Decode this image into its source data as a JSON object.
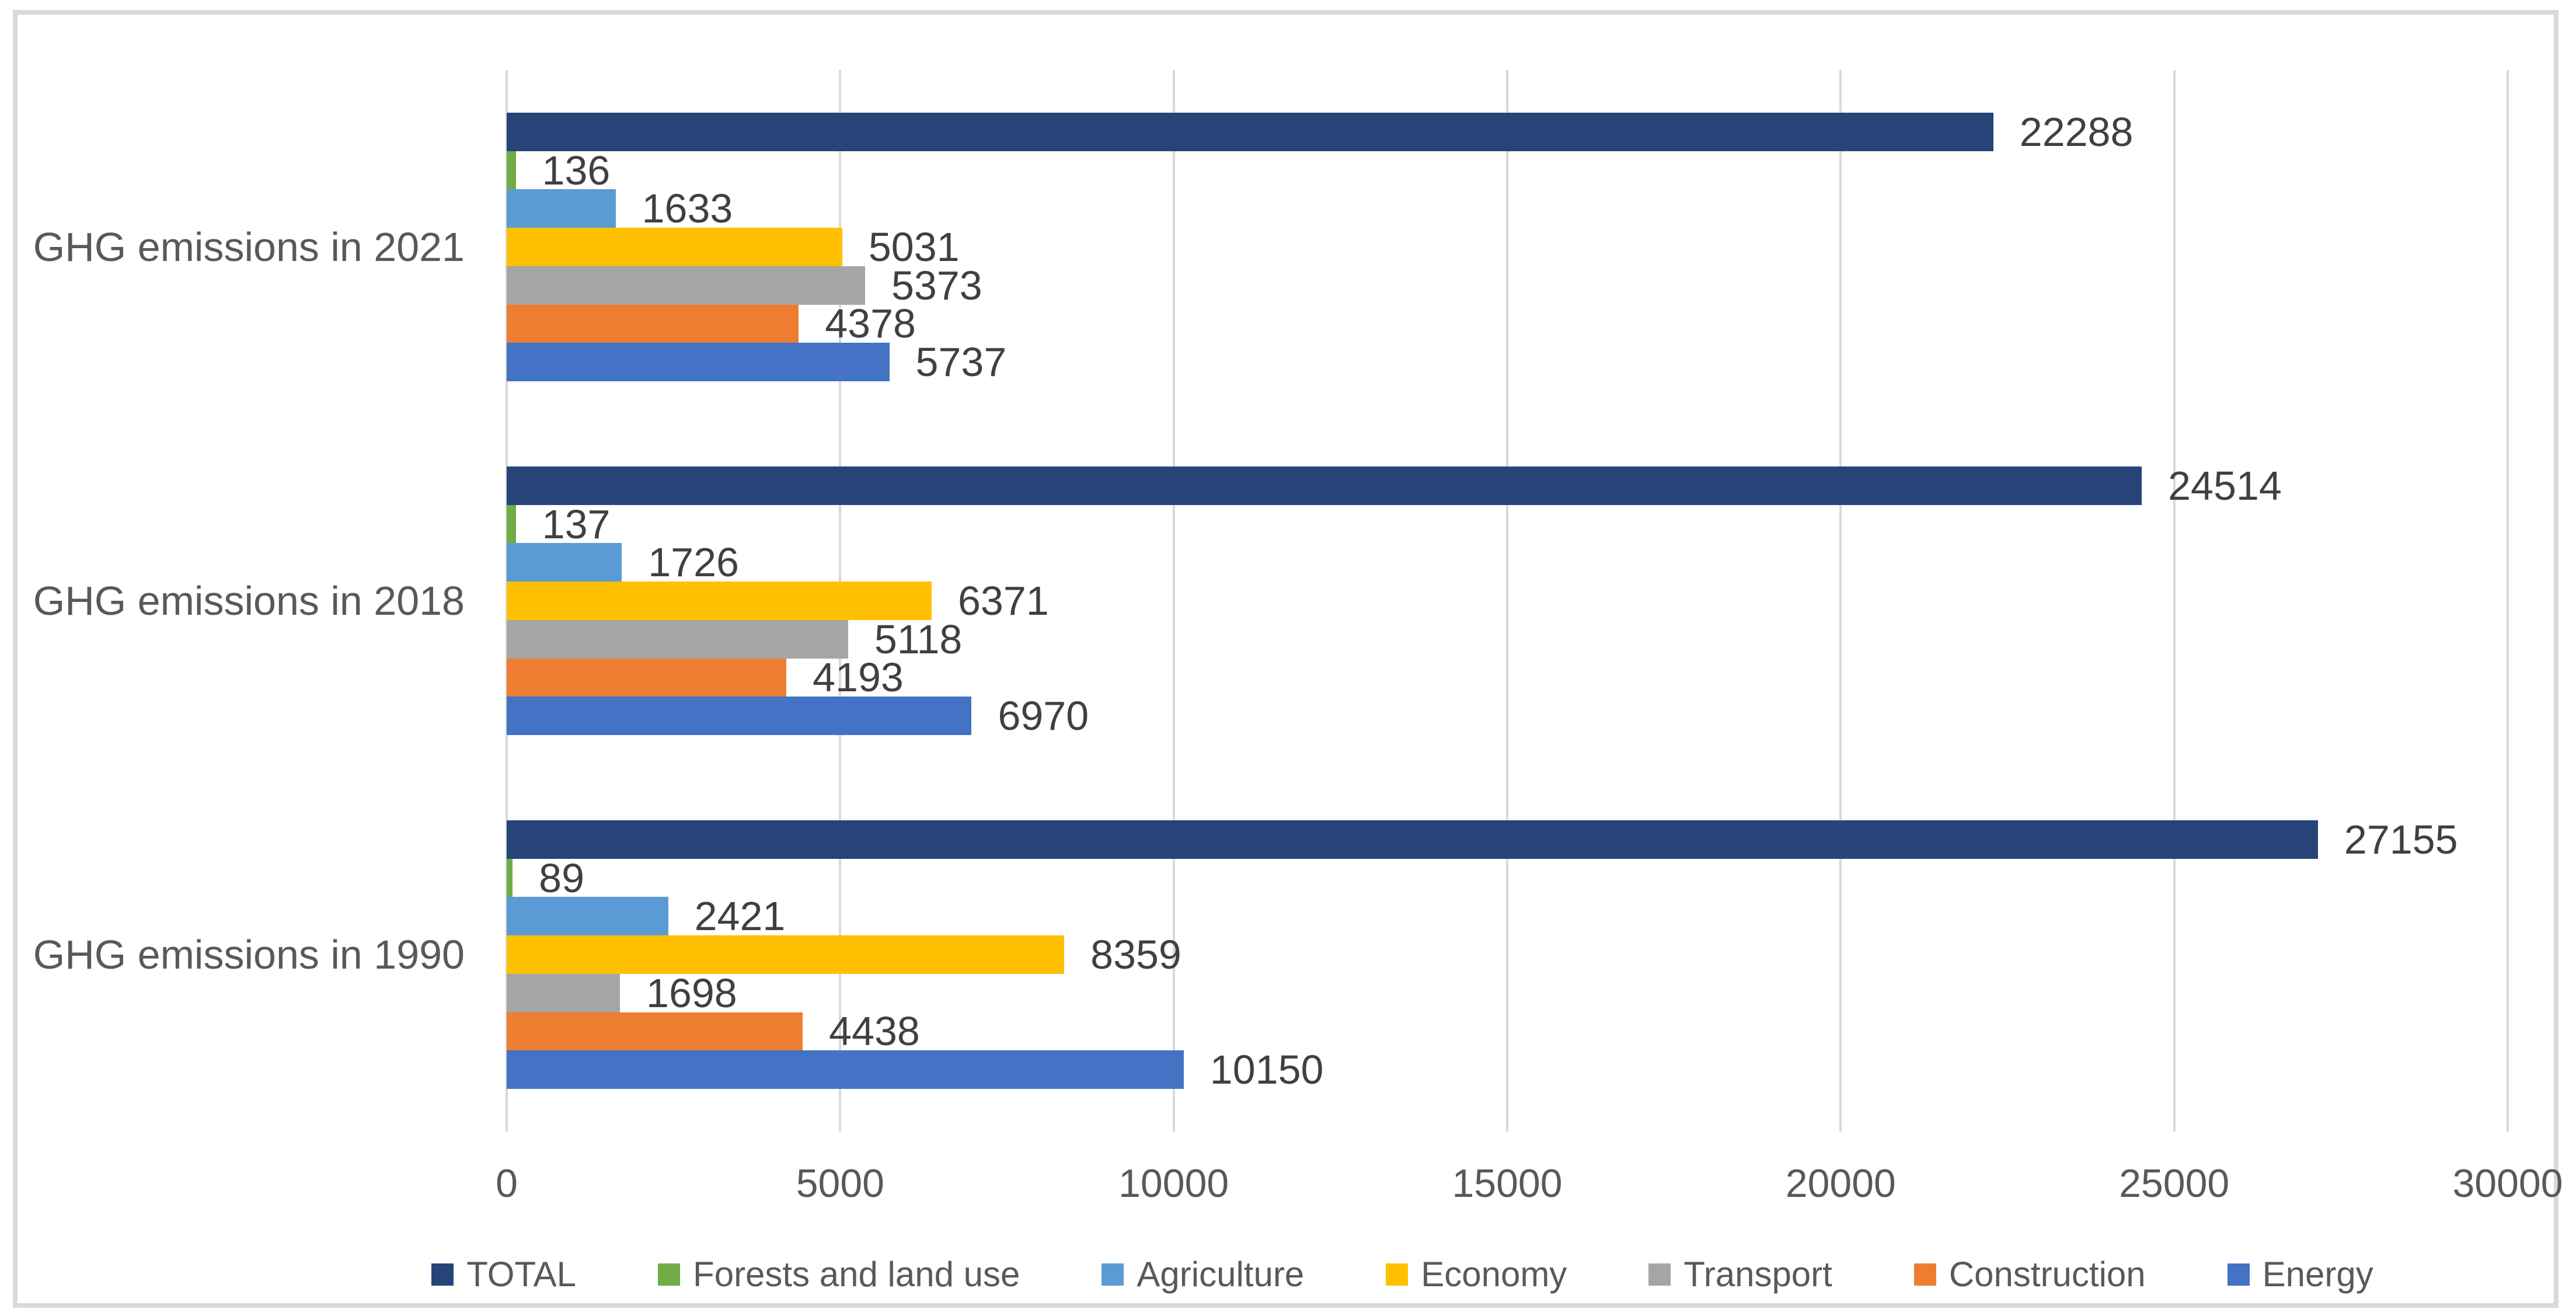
{
  "chart_data": {
    "type": "bar",
    "orientation": "horizontal",
    "title": "",
    "xlabel": "",
    "ylabel": "",
    "categories": [
      "GHG emissions in 2021",
      "GHG emissions in 2018",
      "GHG emissions in 1990"
    ],
    "series": [
      {
        "name": "TOTAL",
        "color": "#264478",
        "values": [
          22288,
          24514,
          27155
        ]
      },
      {
        "name": "Forests and land use",
        "color": "#70AD47",
        "values": [
          136,
          137,
          89
        ]
      },
      {
        "name": "Agriculture",
        "color": "#5B9BD5",
        "values": [
          1633,
          1726,
          2421
        ]
      },
      {
        "name": "Economy",
        "color": "#FFC000",
        "values": [
          5031,
          6371,
          8359
        ]
      },
      {
        "name": "Transport",
        "color": "#A5A5A5",
        "values": [
          5373,
          5118,
          1698
        ]
      },
      {
        "name": "Construction",
        "color": "#ED7D31",
        "values": [
          4378,
          4193,
          4438
        ]
      },
      {
        "name": "Energy",
        "color": "#4472C4",
        "values": [
          5737,
          6970,
          10150
        ]
      }
    ],
    "series_order_top_to_bottom_in_group": [
      "TOTAL",
      "Forests and land use",
      "Agriculture",
      "Economy",
      "Transport",
      "Construction",
      "Energy"
    ],
    "x_axis": {
      "min": 0,
      "max": 30000,
      "step": 5000,
      "tick_labels": [
        "0",
        "5000",
        "10000",
        "15000",
        "20000",
        "25000",
        "30000"
      ]
    },
    "grid": true,
    "data_labels": "outside-end",
    "legend_position": "bottom"
  },
  "style": {
    "frame_border_color": "#D9D9D9",
    "gridline_color": "#D9D9D9",
    "data_label_color": "#404040",
    "axis_label_color": "#595959",
    "legend_text_color": "#595959",
    "background_color": "#FFFFFF"
  }
}
